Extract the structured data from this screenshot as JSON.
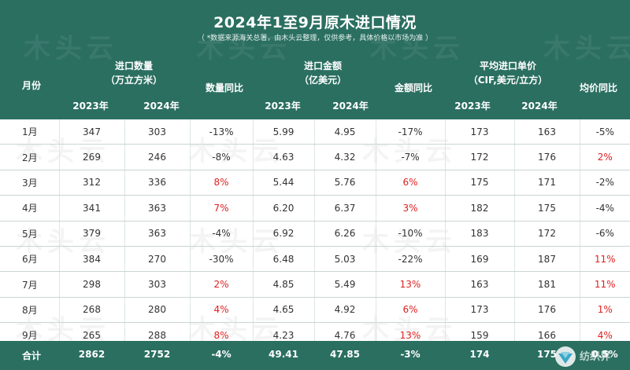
{
  "title": "2024年1至9月原木进口情况",
  "subtitle": "（ *数据来源海关总署，由木头云整理，仅供参考，具体价格以市场为准 ）",
  "headers": {
    "month": "月份",
    "volume_group": "进口数量",
    "volume_unit": "（万立方米）",
    "volume_yoy": "数量同比",
    "amount_group": "进口金额",
    "amount_unit": "（亿美元）",
    "amount_yoy": "金额同比",
    "price_group": "平均进口单价",
    "price_unit": "（CIF,美元/立方）",
    "price_yoy": "均价同比",
    "y2023": "2023年",
    "y2024": "2024年"
  },
  "rows": [
    {
      "month": "1月",
      "v23": "347",
      "v24": "303",
      "vyoy": "-13%",
      "a23": "5.99",
      "a24": "4.95",
      "ayoy": "-17%",
      "p23": "173",
      "p24": "163",
      "pyoy": "-5%"
    },
    {
      "month": "2月",
      "v23": "269",
      "v24": "246",
      "vyoy": "-8%",
      "a23": "4.63",
      "a24": "4.32",
      "ayoy": "-7%",
      "p23": "172",
      "p24": "176",
      "pyoy": "2%"
    },
    {
      "month": "3月",
      "v23": "312",
      "v24": "336",
      "vyoy": "8%",
      "a23": "5.44",
      "a24": "5.76",
      "ayoy": "6%",
      "p23": "175",
      "p24": "171",
      "pyoy": "-2%"
    },
    {
      "month": "4月",
      "v23": "341",
      "v24": "363",
      "vyoy": "7%",
      "a23": "6.20",
      "a24": "6.37",
      "ayoy": "3%",
      "p23": "182",
      "p24": "175",
      "pyoy": "-4%"
    },
    {
      "month": "5月",
      "v23": "379",
      "v24": "363",
      "vyoy": "-4%",
      "a23": "6.92",
      "a24": "6.26",
      "ayoy": "-10%",
      "p23": "183",
      "p24": "172",
      "pyoy": "-6%"
    },
    {
      "month": "6月",
      "v23": "384",
      "v24": "270",
      "vyoy": "-30%",
      "a23": "6.48",
      "a24": "5.03",
      "ayoy": "-22%",
      "p23": "169",
      "p24": "187",
      "pyoy": "11%"
    },
    {
      "month": "7月",
      "v23": "298",
      "v24": "303",
      "vyoy": "2%",
      "a23": "4.85",
      "a24": "5.49",
      "ayoy": "13%",
      "p23": "163",
      "p24": "181",
      "pyoy": "11%"
    },
    {
      "month": "8月",
      "v23": "268",
      "v24": "280",
      "vyoy": "4%",
      "a23": "4.65",
      "a24": "4.92",
      "ayoy": "6%",
      "p23": "173",
      "p24": "176",
      "pyoy": "1%"
    },
    {
      "month": "9月",
      "v23": "265",
      "v24": "288",
      "vyoy": "8%",
      "a23": "4.23",
      "a24": "4.76",
      "ayoy": "13%",
      "p23": "159",
      "p24": "166",
      "pyoy": "4%"
    }
  ],
  "total": {
    "label": "合计",
    "v23": "2862",
    "v24": "2752",
    "vyoy": "-4%",
    "a23": "49.41",
    "a24": "47.85",
    "ayoy": "-3%",
    "p23": "174",
    "p24": "175",
    "pyoy": "0.5%"
  },
  "watermark": "木头云",
  "colors": {
    "header_bg": "#2b6f61",
    "increase": "#e02020",
    "text": "#333333"
  }
}
